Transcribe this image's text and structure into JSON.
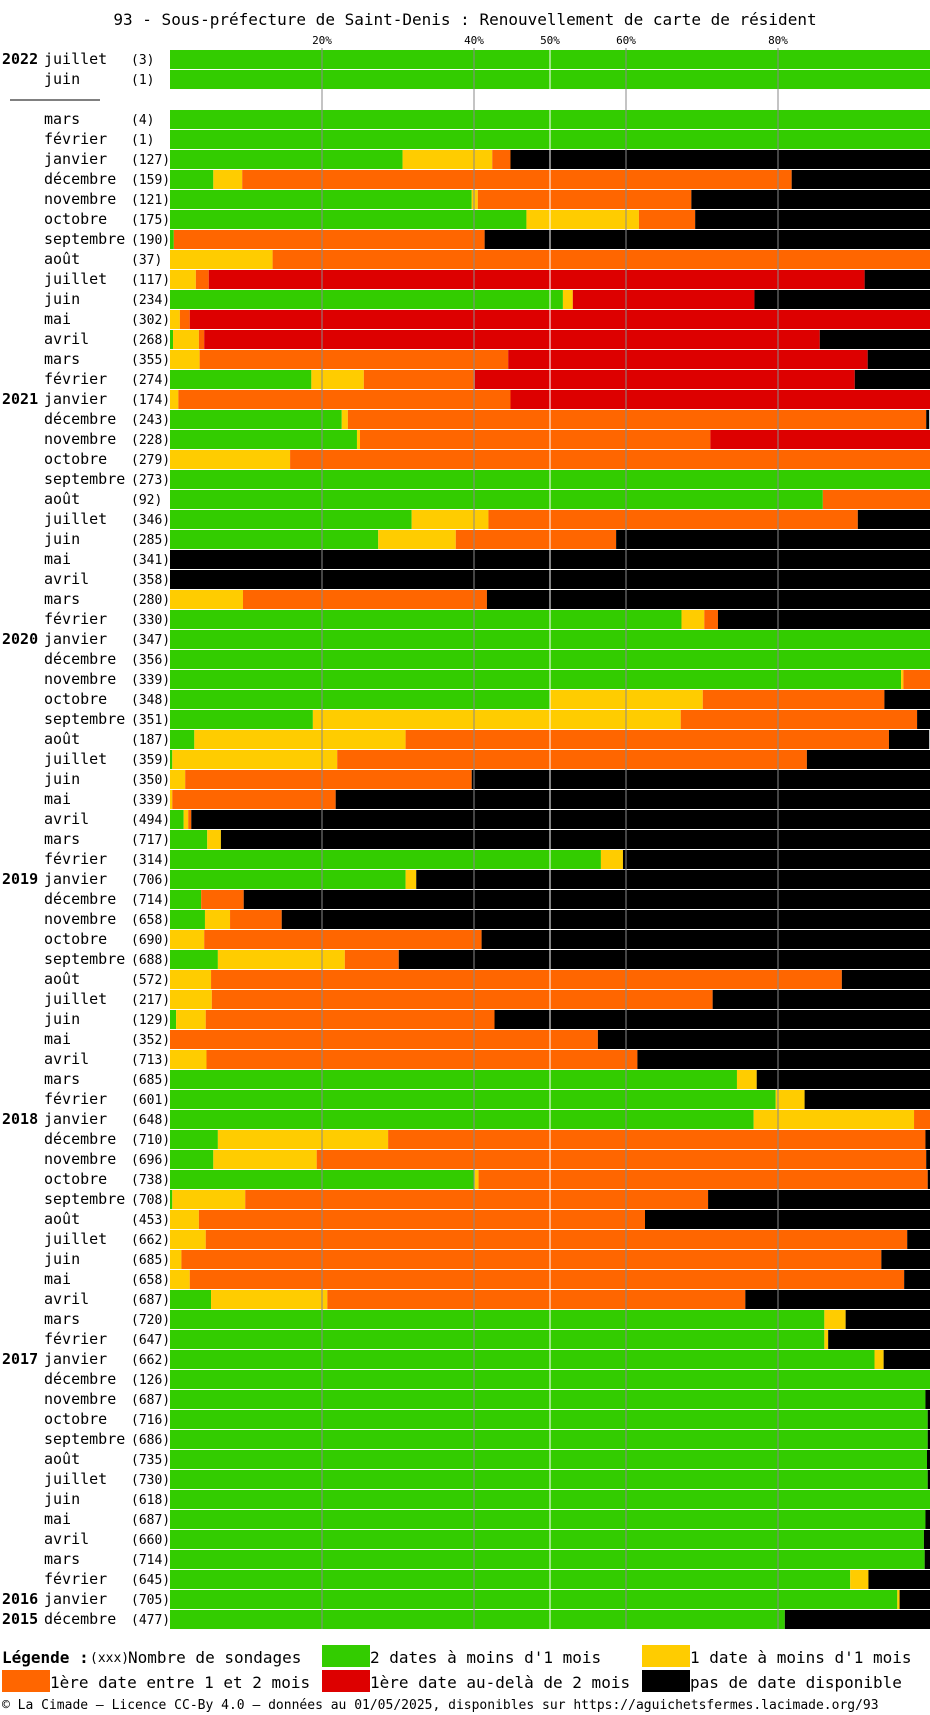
{
  "chart_data": {
    "type": "bar",
    "orientation": "horizontal-stacked-100",
    "title": "93 - Sous-préfecture de Saint-Denis : Renouvellement de carte de résident",
    "x_ticks": [
      "20%",
      "40%",
      "50%",
      "60%",
      "80%"
    ],
    "x_tick_values": [
      20,
      40,
      50,
      60,
      80
    ],
    "xlim": [
      0,
      100
    ],
    "segment_order": [
      "green",
      "yellow",
      "orange",
      "red",
      "black"
    ],
    "colors": {
      "green": "#33cc00",
      "yellow": "#ffcc00",
      "orange": "#ff6600",
      "red": "#dd0000",
      "black": "#000000"
    },
    "groups": [
      {
        "year_label": "2022",
        "rows": [
          {
            "month": "juillet",
            "count": "(3)",
            "values": [
              100,
              0,
              0,
              0,
              0
            ]
          },
          {
            "month": "juin",
            "count": "(1)",
            "values": [
              100,
              0,
              0,
              0,
              0
            ]
          }
        ]
      },
      {
        "year_label": "2021",
        "rows": [
          {
            "month": "mars",
            "count": "(4)",
            "values": [
              100,
              0,
              0,
              0,
              0
            ]
          },
          {
            "month": "février",
            "count": "(1)",
            "values": [
              100,
              0,
              0,
              0,
              0
            ]
          },
          {
            "month": "janvier",
            "count": "(127)",
            "values": [
              30.6,
              11.8,
              2.4,
              0,
              55.2
            ]
          },
          {
            "month": "décembre",
            "count": "(159)",
            "values": [
              5.7,
              3.8,
              72.3,
              0,
              18.2
            ]
          },
          {
            "month": "novembre",
            "count": "(121)",
            "values": [
              39.7,
              0.8,
              28.1,
              0,
              31.4
            ]
          },
          {
            "month": "octobre",
            "count": "(175)",
            "values": [
              46.9,
              14.8,
              7.4,
              0,
              30.9
            ]
          },
          {
            "month": "septembre",
            "count": "(190)",
            "values": [
              0.5,
              0,
              40.9,
              0,
              58.6
            ]
          },
          {
            "month": "août",
            "count": "(37)",
            "values": [
              0,
              13.5,
              86.5,
              0,
              0
            ]
          },
          {
            "month": "juillet",
            "count": "(117)",
            "values": [
              0,
              3.4,
              1.7,
              86.3,
              8.6
            ]
          },
          {
            "month": "juin",
            "count": "(234)",
            "values": [
              51.7,
              1.3,
              0,
              23.9,
              23.1
            ]
          },
          {
            "month": "mai",
            "count": "(302)",
            "values": [
              0,
              1.3,
              1.3,
              97.4,
              0
            ]
          },
          {
            "month": "avril",
            "count": "(268)",
            "values": [
              0.4,
              3.4,
              0.7,
              81.0,
              14.5
            ]
          },
          {
            "month": "mars",
            "count": "(355)",
            "values": [
              0,
              3.9,
              40.6,
              47.3,
              8.2
            ]
          },
          {
            "month": "février",
            "count": "(274)",
            "values": [
              18.6,
              6.9,
              14.6,
              50.0,
              9.9
            ]
          },
          {
            "month": "janvier",
            "count": "(174)",
            "values": [
              0,
              1.1,
              43.7,
              55.2,
              0
            ]
          }
        ]
      },
      {
        "year_label": "2020",
        "rows": [
          {
            "month": "décembre",
            "count": "(243)",
            "values": [
              22.6,
              0.8,
              76.1,
              0,
              0.4
            ]
          },
          {
            "month": "novembre",
            "count": "(228)",
            "values": [
              24.6,
              0.4,
              46.1,
              28.9,
              0
            ]
          },
          {
            "month": "octobre",
            "count": "(279)",
            "values": [
              0,
              15.8,
              84.2,
              0,
              0
            ]
          },
          {
            "month": "septembre",
            "count": "(273)",
            "values": [
              100,
              0,
              0,
              0,
              0
            ]
          },
          {
            "month": "août",
            "count": "(92)",
            "values": [
              85.9,
              0,
              14.1,
              0,
              0
            ]
          },
          {
            "month": "juillet",
            "count": "(346)",
            "values": [
              31.8,
              10.1,
              48.6,
              0,
              9.5
            ]
          },
          {
            "month": "juin",
            "count": "(285)",
            "values": [
              27.4,
              10.2,
              21.1,
              0,
              41.3
            ]
          },
          {
            "month": "mai",
            "count": "(341)",
            "values": [
              0,
              0,
              0,
              0,
              100
            ]
          },
          {
            "month": "avril",
            "count": "(358)",
            "values": [
              0,
              0,
              0,
              0,
              100
            ]
          },
          {
            "month": "mars",
            "count": "(280)",
            "values": [
              0,
              9.6,
              32.1,
              0,
              58.3
            ]
          },
          {
            "month": "février",
            "count": "(330)",
            "values": [
              67.3,
              3.0,
              1.8,
              0,
              27.9
            ]
          },
          {
            "month": "janvier",
            "count": "(347)",
            "values": [
              100,
              0,
              0,
              0,
              0
            ]
          }
        ]
      },
      {
        "year_label": "2019",
        "rows": [
          {
            "month": "décembre",
            "count": "(356)",
            "values": [
              100,
              0,
              0,
              0,
              0
            ]
          },
          {
            "month": "novembre",
            "count": "(339)",
            "values": [
              96.2,
              0.3,
              3.5,
              0,
              0
            ]
          },
          {
            "month": "octobre",
            "count": "(348)",
            "values": [
              50.0,
              20.1,
              23.9,
              0,
              6.0
            ]
          },
          {
            "month": "septembre",
            "count": "(351)",
            "values": [
              18.8,
              48.4,
              31.1,
              0,
              1.7
            ]
          },
          {
            "month": "août",
            "count": "(187)",
            "values": [
              3.2,
              27.8,
              63.6,
              0,
              5.3
            ]
          },
          {
            "month": "juillet",
            "count": "(359)",
            "values": [
              0.3,
              21.7,
              61.8,
              0,
              16.2
            ]
          },
          {
            "month": "juin",
            "count": "(350)",
            "values": [
              0,
              2.0,
              37.7,
              0,
              60.3
            ]
          },
          {
            "month": "mai",
            "count": "(339)",
            "values": [
              0,
              0.3,
              21.5,
              0,
              78.2
            ]
          },
          {
            "month": "avril",
            "count": "(494)",
            "values": [
              1.8,
              0.6,
              0.4,
              0,
              97.2
            ]
          },
          {
            "month": "mars",
            "count": "(717)",
            "values": [
              4.9,
              1.8,
              0,
              0,
              93.3
            ]
          },
          {
            "month": "février",
            "count": "(314)",
            "values": [
              56.7,
              2.9,
              0,
              0,
              40.4
            ]
          },
          {
            "month": "janvier",
            "count": "(706)",
            "values": [
              31.0,
              1.4,
              0,
              0,
              67.6
            ]
          }
        ]
      },
      {
        "year_label": "2018",
        "rows": [
          {
            "month": "décembre",
            "count": "(714)",
            "values": [
              4.1,
              0,
              5.6,
              0,
              90.3
            ]
          },
          {
            "month": "novembre",
            "count": "(658)",
            "values": [
              4.6,
              3.3,
              6.8,
              0,
              85.3
            ]
          },
          {
            "month": "octobre",
            "count": "(690)",
            "values": [
              0,
              4.5,
              36.5,
              0,
              59.0
            ]
          },
          {
            "month": "septembre",
            "count": "(688)",
            "values": [
              6.3,
              16.7,
              7.1,
              0,
              69.9
            ]
          },
          {
            "month": "août",
            "count": "(572)",
            "values": [
              0,
              5.4,
              83.0,
              0,
              11.6
            ]
          },
          {
            "month": "juillet",
            "count": "(217)",
            "values": [
              0,
              5.5,
              65.9,
              0,
              28.6
            ]
          },
          {
            "month": "juin",
            "count": "(129)",
            "values": [
              0.8,
              3.9,
              38.0,
              0,
              57.3
            ]
          },
          {
            "month": "mai",
            "count": "(352)",
            "values": [
              0,
              0,
              56.3,
              0,
              43.7
            ]
          },
          {
            "month": "avril",
            "count": "(713)",
            "values": [
              0,
              4.8,
              56.7,
              0,
              38.5
            ]
          },
          {
            "month": "mars",
            "count": "(685)",
            "values": [
              74.6,
              2.6,
              0,
              0,
              22.8
            ]
          },
          {
            "month": "février",
            "count": "(601)",
            "values": [
              79.7,
              3.8,
              0,
              0,
              16.5
            ]
          },
          {
            "month": "janvier",
            "count": "(648)",
            "values": [
              76.8,
              21.1,
              2.1,
              0,
              0
            ]
          }
        ]
      },
      {
        "year_label": "2017",
        "rows": [
          {
            "month": "décembre",
            "count": "(710)",
            "values": [
              6.3,
              22.4,
              70.7,
              0,
              0.6
            ]
          },
          {
            "month": "novembre",
            "count": "(696)",
            "values": [
              5.7,
              13.6,
              80.2,
              0,
              0.5
            ]
          },
          {
            "month": "octobre",
            "count": "(738)",
            "values": [
              40.1,
              0.5,
              59.1,
              0,
              0.3
            ]
          },
          {
            "month": "septembre",
            "count": "(708)",
            "values": [
              0.3,
              9.6,
              60.9,
              0,
              29.2
            ]
          },
          {
            "month": "août",
            "count": "(453)",
            "values": [
              0,
              3.8,
              58.7,
              0,
              37.5
            ]
          },
          {
            "month": "juillet",
            "count": "(662)",
            "values": [
              0,
              4.7,
              92.3,
              0,
              3.0
            ]
          },
          {
            "month": "juin",
            "count": "(685)",
            "values": [
              0,
              1.5,
              92.1,
              0,
              6.4
            ]
          },
          {
            "month": "mai",
            "count": "(658)",
            "values": [
              0,
              2.6,
              94.0,
              0,
              3.4
            ]
          },
          {
            "month": "avril",
            "count": "(687)",
            "values": [
              5.4,
              15.3,
              55.0,
              0,
              24.3
            ]
          },
          {
            "month": "mars",
            "count": "(720)",
            "values": [
              86.1,
              2.8,
              0,
              0,
              11.1
            ]
          },
          {
            "month": "février",
            "count": "(647)",
            "values": [
              86.1,
              0.5,
              0,
              0,
              13.4
            ]
          },
          {
            "month": "janvier",
            "count": "(662)",
            "values": [
              92.7,
              1.2,
              0,
              0,
              6.1
            ]
          }
        ]
      },
      {
        "year_label": "2016",
        "rows": [
          {
            "month": "décembre",
            "count": "(126)",
            "values": [
              100,
              0,
              0,
              0,
              0
            ]
          },
          {
            "month": "novembre",
            "count": "(687)",
            "values": [
              99.4,
              0,
              0,
              0,
              0.6
            ]
          },
          {
            "month": "octobre",
            "count": "(716)",
            "values": [
              99.7,
              0,
              0,
              0,
              0.3
            ]
          },
          {
            "month": "septembre",
            "count": "(686)",
            "values": [
              99.7,
              0,
              0,
              0,
              0.3
            ]
          },
          {
            "month": "août",
            "count": "(735)",
            "values": [
              99.6,
              0,
              0,
              0,
              0.4
            ]
          },
          {
            "month": "juillet",
            "count": "(730)",
            "values": [
              99.7,
              0,
              0,
              0,
              0.3
            ]
          },
          {
            "month": "juin",
            "count": "(618)",
            "values": [
              100,
              0,
              0,
              0,
              0
            ]
          },
          {
            "month": "mai",
            "count": "(687)",
            "values": [
              99.4,
              0,
              0,
              0,
              0.6
            ]
          },
          {
            "month": "avril",
            "count": "(660)",
            "values": [
              99.2,
              0,
              0,
              0,
              0.8
            ]
          },
          {
            "month": "mars",
            "count": "(714)",
            "values": [
              99.3,
              0,
              0,
              0,
              0.7
            ]
          },
          {
            "month": "février",
            "count": "(645)",
            "values": [
              89.5,
              2.4,
              0,
              0,
              8.1
            ]
          },
          {
            "month": "janvier",
            "count": "(705)",
            "values": [
              95.7,
              0.3,
              0,
              0,
              4.0
            ]
          }
        ]
      },
      {
        "year_label": "2015",
        "rows": [
          {
            "month": "décembre",
            "count": "(477)",
            "values": [
              80.9,
              0,
              0,
              0,
              19.1
            ]
          }
        ]
      }
    ],
    "legend": {
      "title": "Légende :",
      "count_marker": "(xxx)",
      "count_desc": "Nombre de sondages",
      "placement": "bottom",
      "items": [
        {
          "color": "#33cc00",
          "label": "2 dates à moins d'1 mois"
        },
        {
          "color": "#ffcc00",
          "label": "1 date à moins d'1 mois"
        },
        {
          "color": "#ff6600",
          "label": "1ère date entre 1 et 2 mois"
        },
        {
          "color": "#dd0000",
          "label": "1ère date au-delà de 2 mois"
        },
        {
          "color": "#000000",
          "label": "pas de date disponible"
        }
      ]
    }
  },
  "footer": "© La Cimade — Licence CC-By 4.0 — données au 01/05/2025, disponibles sur https://aguichetsfermes.lacimade.org/93"
}
